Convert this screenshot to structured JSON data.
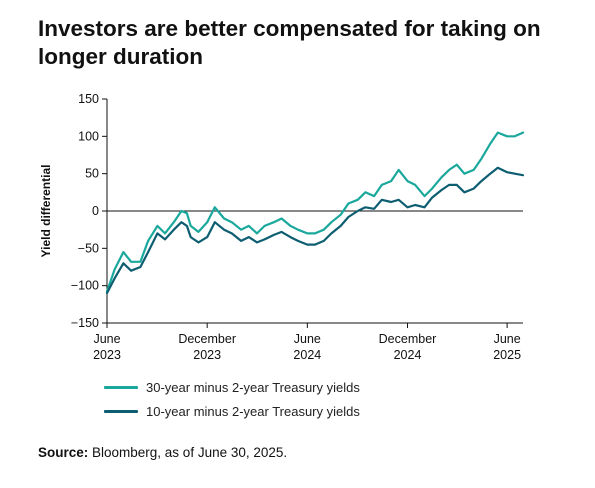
{
  "title": "Investors are better compensated for taking on longer duration",
  "source": {
    "prefix": "Source:",
    "text": " Bloomberg, as of June 30, 2025."
  },
  "colors": {
    "series1": "#1aa89c",
    "series2": "#0e5e72",
    "axis": "#111111"
  },
  "chart_data": {
    "type": "line",
    "ylabel": "Yield differential",
    "xlabel": "",
    "ylim": [
      -150,
      150
    ],
    "yticks": [
      -150,
      -100,
      -50,
      0,
      50,
      100,
      150
    ],
    "xlim": [
      "2023-06-01",
      "2025-06-30"
    ],
    "xticks": [
      {
        "date": "2023-06-01",
        "label": [
          "June",
          "2023"
        ]
      },
      {
        "date": "2023-12-01",
        "label": [
          "December",
          "2023"
        ]
      },
      {
        "date": "2024-06-01",
        "label": [
          "June",
          "2024"
        ]
      },
      {
        "date": "2024-12-01",
        "label": [
          "December",
          "2024"
        ]
      },
      {
        "date": "2025-06-01",
        "label": [
          "June",
          "2025"
        ]
      }
    ],
    "grid": false,
    "legend": "bottom",
    "series": [
      {
        "name": "30-year minus 2-year Treasury yields",
        "x": [
          "2023-06-01",
          "2023-06-15",
          "2023-07-01",
          "2023-07-15",
          "2023-08-01",
          "2023-08-15",
          "2023-09-01",
          "2023-09-15",
          "2023-10-01",
          "2023-10-15",
          "2023-10-25",
          "2023-11-01",
          "2023-11-15",
          "2023-12-01",
          "2023-12-15",
          "2024-01-01",
          "2024-01-15",
          "2024-02-01",
          "2024-02-15",
          "2024-03-01",
          "2024-03-15",
          "2024-04-01",
          "2024-04-15",
          "2024-05-01",
          "2024-05-15",
          "2024-06-01",
          "2024-06-15",
          "2024-07-01",
          "2024-07-15",
          "2024-08-01",
          "2024-08-15",
          "2024-09-01",
          "2024-09-15",
          "2024-10-01",
          "2024-10-15",
          "2024-11-01",
          "2024-11-15",
          "2024-12-01",
          "2024-12-15",
          "2025-01-01",
          "2025-01-15",
          "2025-02-01",
          "2025-02-15",
          "2025-03-01",
          "2025-03-15",
          "2025-04-01",
          "2025-04-15",
          "2025-05-01",
          "2025-05-15",
          "2025-06-01",
          "2025-06-15",
          "2025-06-30"
        ],
        "values": [
          -108,
          -78,
          -55,
          -68,
          -68,
          -40,
          -20,
          -30,
          -15,
          0,
          -3,
          -20,
          -28,
          -15,
          5,
          -10,
          -15,
          -25,
          -20,
          -30,
          -20,
          -15,
          -10,
          -20,
          -25,
          -30,
          -30,
          -25,
          -15,
          -5,
          10,
          15,
          25,
          20,
          35,
          40,
          55,
          40,
          35,
          20,
          30,
          45,
          55,
          62,
          50,
          55,
          70,
          90,
          105,
          100,
          100,
          105
        ]
      },
      {
        "name": "10-year minus 2-year Treasury yields",
        "x": [
          "2023-06-01",
          "2023-06-15",
          "2023-07-01",
          "2023-07-15",
          "2023-08-01",
          "2023-08-15",
          "2023-09-01",
          "2023-09-15",
          "2023-10-01",
          "2023-10-15",
          "2023-10-25",
          "2023-11-01",
          "2023-11-15",
          "2023-12-01",
          "2023-12-15",
          "2024-01-01",
          "2024-01-15",
          "2024-02-01",
          "2024-02-15",
          "2024-03-01",
          "2024-03-15",
          "2024-04-01",
          "2024-04-15",
          "2024-05-01",
          "2024-05-15",
          "2024-06-01",
          "2024-06-15",
          "2024-07-01",
          "2024-07-15",
          "2024-08-01",
          "2024-08-15",
          "2024-09-01",
          "2024-09-15",
          "2024-10-01",
          "2024-10-15",
          "2024-11-01",
          "2024-11-15",
          "2024-12-01",
          "2024-12-15",
          "2025-01-01",
          "2025-01-15",
          "2025-02-01",
          "2025-02-15",
          "2025-03-01",
          "2025-03-15",
          "2025-04-01",
          "2025-04-15",
          "2025-05-01",
          "2025-05-15",
          "2025-06-01",
          "2025-06-15",
          "2025-06-30"
        ],
        "values": [
          -110,
          -90,
          -70,
          -80,
          -75,
          -55,
          -30,
          -38,
          -25,
          -15,
          -20,
          -35,
          -42,
          -35,
          -15,
          -25,
          -30,
          -40,
          -35,
          -42,
          -38,
          -32,
          -28,
          -35,
          -40,
          -45,
          -45,
          -40,
          -30,
          -20,
          -8,
          0,
          5,
          3,
          15,
          12,
          15,
          5,
          8,
          5,
          18,
          28,
          35,
          35,
          25,
          30,
          40,
          50,
          58,
          52,
          50,
          48
        ]
      }
    ]
  }
}
